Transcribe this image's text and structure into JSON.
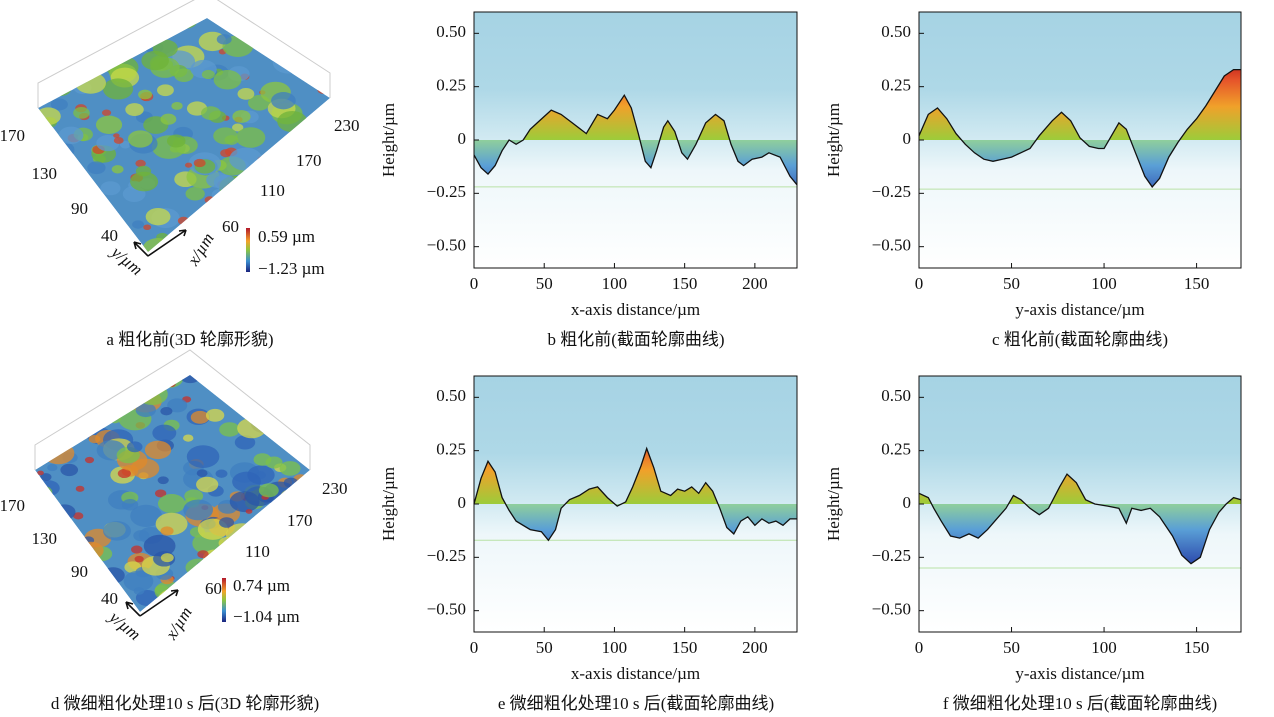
{
  "chart_data": [
    {
      "type": "surface",
      "caption": "a  粗化前(3D 轮廓形貌)",
      "xticks": [
        60,
        110,
        170,
        230
      ],
      "yticks": [
        40,
        90,
        130,
        170
      ],
      "xlabel": "x/µm",
      "ylabel": "y/µm",
      "colorbar": [
        {
          "value": 0.59,
          "label": "0.59 µm"
        },
        {
          "value": -1.23,
          "label": "−1.23 µm"
        }
      ]
    },
    {
      "type": "line",
      "caption": "b  粗化前(截面轮廓曲线)",
      "xlabel": "x-axis distance/µm",
      "ylabel": "Height/µm",
      "xlim": [
        0,
        230
      ],
      "ylim": [
        -0.6,
        0.6
      ],
      "xticks": [
        0,
        50,
        100,
        150,
        200
      ],
      "yticks": [
        {
          "value": 0.5,
          "label": "0.50"
        },
        0.25,
        0,
        {
          "value": -0.25,
          "label": "−0.25"
        },
        {
          "value": -0.5,
          "label": "−0.50"
        }
      ],
      "hline": -0.22,
      "x": [
        0,
        5,
        10,
        15,
        20,
        25,
        30,
        35,
        40,
        45,
        50,
        55,
        62,
        70,
        80,
        88,
        95,
        100,
        107,
        112,
        117,
        122,
        126,
        130,
        135,
        138,
        143,
        148,
        152,
        158,
        165,
        172,
        178,
        183,
        188,
        192,
        198,
        205,
        210,
        218,
        225,
        230
      ],
      "values": [
        -0.07,
        -0.13,
        -0.16,
        -0.12,
        -0.05,
        0,
        -0.02,
        0,
        0.05,
        0.08,
        0.11,
        0.14,
        0.12,
        0.08,
        0.03,
        0.12,
        0.1,
        0.14,
        0.21,
        0.15,
        0.03,
        -0.1,
        -0.13,
        -0.05,
        0.06,
        0.09,
        0.04,
        -0.06,
        -0.09,
        -0.02,
        0.08,
        0.12,
        0.09,
        -0.02,
        -0.1,
        -0.12,
        -0.09,
        -0.08,
        -0.06,
        -0.08,
        -0.17,
        -0.21
      ]
    },
    {
      "type": "line",
      "caption": "c  粗化前(截面轮廓曲线)",
      "xlabel": "y-axis distance/µm",
      "ylabel": "Height/µm",
      "xlim": [
        0,
        174
      ],
      "ylim": [
        -0.6,
        0.6
      ],
      "xticks": [
        0,
        50,
        100,
        150
      ],
      "yticks": [
        {
          "value": 0.5,
          "label": "0.50"
        },
        0.25,
        0,
        {
          "value": -0.25,
          "label": "−0.25"
        },
        {
          "value": -0.5,
          "label": "−0.50"
        }
      ],
      "hline": -0.23,
      "x": [
        0,
        5,
        10,
        15,
        20,
        25,
        30,
        35,
        40,
        45,
        50,
        55,
        60,
        65,
        72,
        77,
        82,
        87,
        92,
        97,
        100,
        104,
        108,
        112,
        117,
        122,
        126,
        130,
        135,
        140,
        145,
        150,
        155,
        160,
        165,
        170,
        174
      ],
      "values": [
        0.02,
        0.12,
        0.15,
        0.1,
        0.03,
        -0.02,
        -0.06,
        -0.09,
        -0.1,
        -0.09,
        -0.08,
        -0.06,
        -0.04,
        0.02,
        0.09,
        0.13,
        0.09,
        0.01,
        -0.03,
        -0.04,
        -0.04,
        0.02,
        0.08,
        0.05,
        -0.06,
        -0.17,
        -0.22,
        -0.18,
        -0.08,
        -0.01,
        0.05,
        0.1,
        0.16,
        0.23,
        0.3,
        0.33,
        0.33
      ]
    },
    {
      "type": "surface",
      "caption": "d  微细粗化处理10 s 后(3D 轮廓形貌)",
      "xticks": [
        60,
        110,
        170,
        230
      ],
      "yticks": [
        40,
        90,
        130,
        170
      ],
      "xlabel": "x/µm",
      "ylabel": "y/µm",
      "colorbar": [
        {
          "value": 0.74,
          "label": "0.74 µm"
        },
        {
          "value": -1.04,
          "label": "−1.04 µm"
        }
      ]
    },
    {
      "type": "line",
      "caption": "e  微细粗化处理10 s 后(截面轮廓曲线)",
      "xlabel": "x-axis distance/µm",
      "ylabel": "Height/µm",
      "xlim": [
        0,
        230
      ],
      "ylim": [
        -0.6,
        0.6
      ],
      "xticks": [
        0,
        50,
        100,
        150,
        200
      ],
      "yticks": [
        {
          "value": 0.5,
          "label": "0.50"
        },
        0.25,
        0,
        {
          "value": -0.25,
          "label": "−0.25"
        },
        {
          "value": -0.5,
          "label": "−0.50"
        }
      ],
      "hline": -0.17,
      "x": [
        0,
        5,
        10,
        15,
        20,
        25,
        30,
        40,
        48,
        53,
        58,
        62,
        68,
        75,
        82,
        88,
        95,
        102,
        108,
        113,
        119,
        123,
        128,
        133,
        140,
        145,
        150,
        155,
        160,
        165,
        170,
        175,
        180,
        185,
        190,
        195,
        200,
        205,
        210,
        215,
        220,
        225,
        230
      ],
      "values": [
        0,
        0.12,
        0.2,
        0.15,
        0.03,
        -0.03,
        -0.08,
        -0.12,
        -0.13,
        -0.17,
        -0.12,
        -0.02,
        0.02,
        0.04,
        0.07,
        0.08,
        0.03,
        -0.01,
        0.01,
        0.08,
        0.18,
        0.26,
        0.17,
        0.06,
        0.04,
        0.07,
        0.06,
        0.08,
        0.05,
        0.1,
        0.06,
        -0.02,
        -0.11,
        -0.14,
        -0.08,
        -0.06,
        -0.1,
        -0.07,
        -0.09,
        -0.08,
        -0.1,
        -0.07,
        -0.07
      ]
    },
    {
      "type": "line",
      "caption": "f  微细粗化处理10 s 后(截面轮廓曲线)",
      "xlabel": "y-axis distance/µm",
      "ylabel": "Height/µm",
      "xlim": [
        0,
        174
      ],
      "ylim": [
        -0.6,
        0.6
      ],
      "xticks": [
        0,
        50,
        100,
        150
      ],
      "yticks": [
        {
          "value": 0.5,
          "label": "0.50"
        },
        0.25,
        0,
        {
          "value": -0.25,
          "label": "−0.25"
        },
        {
          "value": -0.5,
          "label": "−0.50"
        }
      ],
      "hline": -0.3,
      "x": [
        0,
        5,
        8,
        12,
        17,
        22,
        27,
        32,
        37,
        42,
        47,
        51,
        55,
        60,
        65,
        70,
        76,
        80,
        85,
        90,
        95,
        102,
        108,
        112,
        115,
        120,
        125,
        130,
        137,
        142,
        147,
        152,
        157,
        162,
        166,
        170,
        174
      ],
      "values": [
        0.05,
        0.03,
        -0.02,
        -0.08,
        -0.15,
        -0.16,
        -0.14,
        -0.16,
        -0.12,
        -0.07,
        -0.02,
        0.04,
        0.02,
        -0.02,
        -0.05,
        -0.02,
        0.08,
        0.14,
        0.1,
        0.02,
        0,
        -0.01,
        -0.02,
        -0.09,
        -0.02,
        -0.03,
        -0.02,
        -0.06,
        -0.15,
        -0.24,
        -0.28,
        -0.25,
        -0.12,
        -0.04,
        0,
        0.03,
        0.02
      ]
    }
  ]
}
